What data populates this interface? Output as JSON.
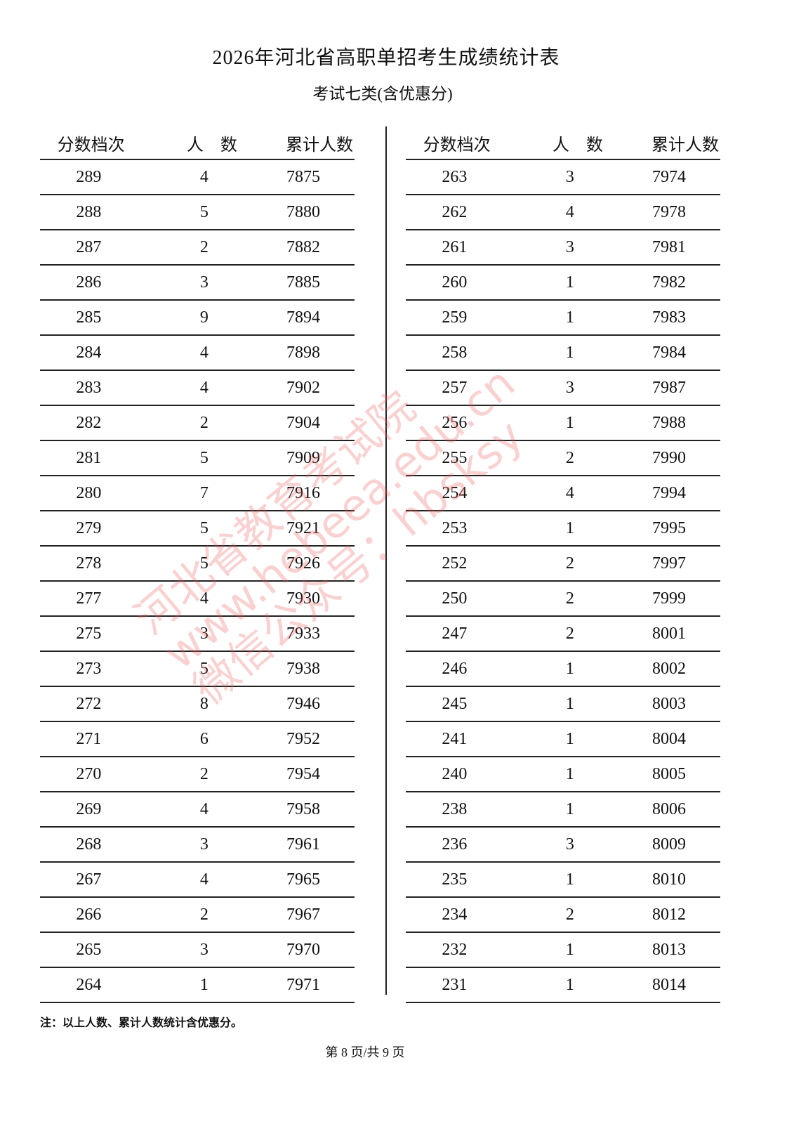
{
  "title": "2026年河北省高职单招考生成绩统计表",
  "subtitle": "考试七类(含优惠分)",
  "headers": {
    "score": "分数档次",
    "count": "人　数",
    "cumulative": "累计人数"
  },
  "left_rows": [
    {
      "score": "289",
      "count": "4",
      "cumulative": "7875"
    },
    {
      "score": "288",
      "count": "5",
      "cumulative": "7880"
    },
    {
      "score": "287",
      "count": "2",
      "cumulative": "7882"
    },
    {
      "score": "286",
      "count": "3",
      "cumulative": "7885"
    },
    {
      "score": "285",
      "count": "9",
      "cumulative": "7894"
    },
    {
      "score": "284",
      "count": "4",
      "cumulative": "7898"
    },
    {
      "score": "283",
      "count": "4",
      "cumulative": "7902"
    },
    {
      "score": "282",
      "count": "2",
      "cumulative": "7904"
    },
    {
      "score": "281",
      "count": "5",
      "cumulative": "7909"
    },
    {
      "score": "280",
      "count": "7",
      "cumulative": "7916"
    },
    {
      "score": "279",
      "count": "5",
      "cumulative": "7921"
    },
    {
      "score": "278",
      "count": "5",
      "cumulative": "7926"
    },
    {
      "score": "277",
      "count": "4",
      "cumulative": "7930"
    },
    {
      "score": "275",
      "count": "3",
      "cumulative": "7933"
    },
    {
      "score": "273",
      "count": "5",
      "cumulative": "7938"
    },
    {
      "score": "272",
      "count": "8",
      "cumulative": "7946"
    },
    {
      "score": "271",
      "count": "6",
      "cumulative": "7952"
    },
    {
      "score": "270",
      "count": "2",
      "cumulative": "7954"
    },
    {
      "score": "269",
      "count": "4",
      "cumulative": "7958"
    },
    {
      "score": "268",
      "count": "3",
      "cumulative": "7961"
    },
    {
      "score": "267",
      "count": "4",
      "cumulative": "7965"
    },
    {
      "score": "266",
      "count": "2",
      "cumulative": "7967"
    },
    {
      "score": "265",
      "count": "3",
      "cumulative": "7970"
    },
    {
      "score": "264",
      "count": "1",
      "cumulative": "7971"
    }
  ],
  "right_rows": [
    {
      "score": "263",
      "count": "3",
      "cumulative": "7974"
    },
    {
      "score": "262",
      "count": "4",
      "cumulative": "7978"
    },
    {
      "score": "261",
      "count": "3",
      "cumulative": "7981"
    },
    {
      "score": "260",
      "count": "1",
      "cumulative": "7982"
    },
    {
      "score": "259",
      "count": "1",
      "cumulative": "7983"
    },
    {
      "score": "258",
      "count": "1",
      "cumulative": "7984"
    },
    {
      "score": "257",
      "count": "3",
      "cumulative": "7987"
    },
    {
      "score": "256",
      "count": "1",
      "cumulative": "7988"
    },
    {
      "score": "255",
      "count": "2",
      "cumulative": "7990"
    },
    {
      "score": "254",
      "count": "4",
      "cumulative": "7994"
    },
    {
      "score": "253",
      "count": "1",
      "cumulative": "7995"
    },
    {
      "score": "252",
      "count": "2",
      "cumulative": "7997"
    },
    {
      "score": "250",
      "count": "2",
      "cumulative": "7999"
    },
    {
      "score": "247",
      "count": "2",
      "cumulative": "8001"
    },
    {
      "score": "246",
      "count": "1",
      "cumulative": "8002"
    },
    {
      "score": "245",
      "count": "1",
      "cumulative": "8003"
    },
    {
      "score": "241",
      "count": "1",
      "cumulative": "8004"
    },
    {
      "score": "240",
      "count": "1",
      "cumulative": "8005"
    },
    {
      "score": "238",
      "count": "1",
      "cumulative": "8006"
    },
    {
      "score": "236",
      "count": "3",
      "cumulative": "8009"
    },
    {
      "score": "235",
      "count": "1",
      "cumulative": "8010"
    },
    {
      "score": "234",
      "count": "2",
      "cumulative": "8012"
    },
    {
      "score": "232",
      "count": "1",
      "cumulative": "8013"
    },
    {
      "score": "231",
      "count": "1",
      "cumulative": "8014"
    }
  ],
  "note": "注：以上人数、累计人数统计含优惠分。",
  "footer": "第 8 页/共 9 页",
  "watermark": {
    "lines": [
      "河北省教育考试院",
      "www.hebeea.edu.cn",
      "微信公众号：hbsksy"
    ],
    "color": "#eb5a5a"
  }
}
